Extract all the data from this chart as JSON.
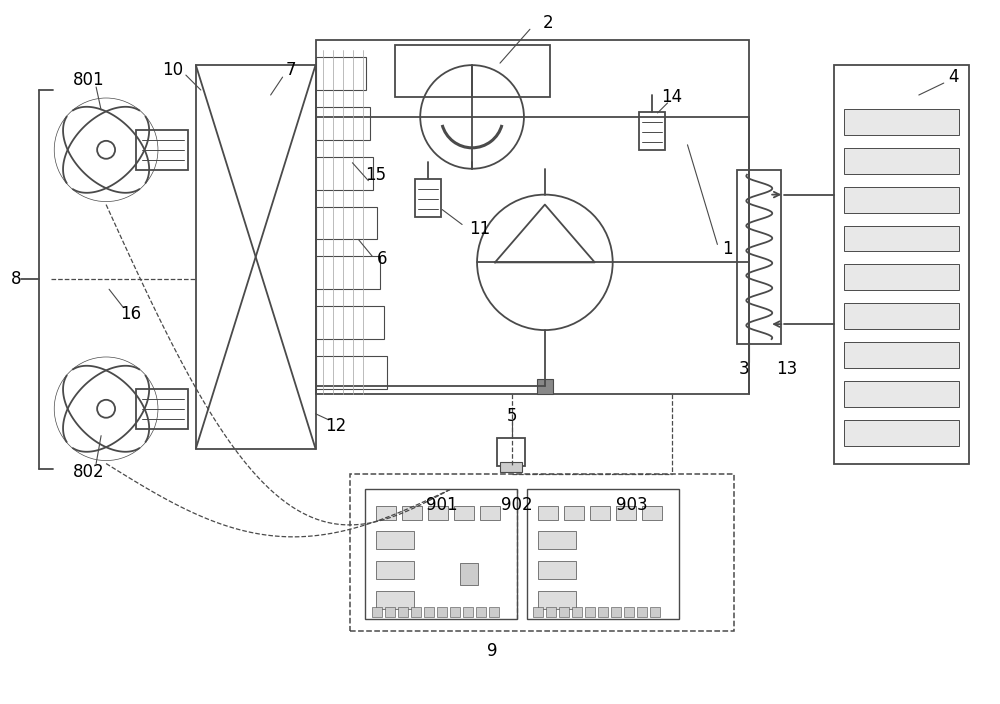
{
  "bg_color": "#ffffff",
  "line_color": "#4a4a4a",
  "label_color": "#000000",
  "fig_width": 10.0,
  "fig_height": 7.04
}
